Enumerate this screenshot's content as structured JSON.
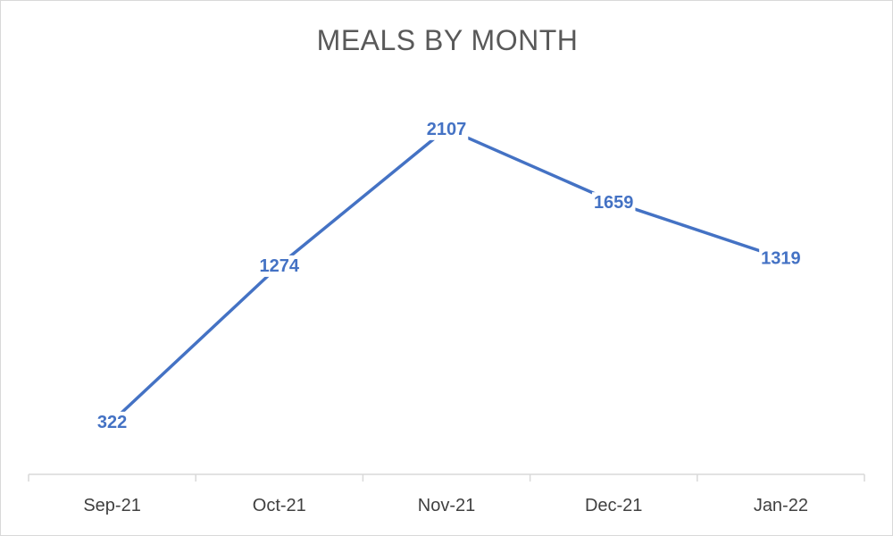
{
  "chart_data": {
    "type": "line",
    "title": "MEALS BY MONTH",
    "categories": [
      "Sep-21",
      "Oct-21",
      "Nov-21",
      "Dec-21",
      "Jan-22"
    ],
    "series": [
      {
        "values": [
          322,
          1274,
          2107,
          1659,
          1319
        ]
      }
    ],
    "data_labels": [
      "322",
      "1274",
      "2107",
      "1659",
      "1319"
    ],
    "ylim": [
      0,
      2400
    ],
    "grid": false,
    "legend": "none",
    "line_color": "#4472c4",
    "axis_color": "#d9d9d9"
  }
}
